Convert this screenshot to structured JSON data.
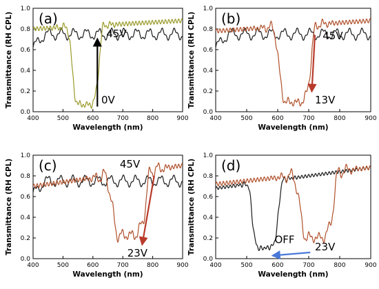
{
  "colors": {
    "black": "#1a1a1a",
    "olive": "#9a9a2a",
    "brown": "#b0502a",
    "arrow_black": "#000000",
    "arrow_red": "#b83a2a",
    "arrow_blue": "#4a78d8"
  },
  "chart_data": [
    {
      "type": "line",
      "panel": "(a)",
      "xlabel": "Wavelength (nm)",
      "ylabel": "Transmittance (RH CPL)",
      "xlim": [
        400,
        900
      ],
      "ylim": [
        0,
        1.0
      ],
      "xticks": [
        "400",
        "500",
        "600",
        "700",
        "800",
        "900"
      ],
      "yticks": [
        "0.0",
        "0.2",
        "0.4",
        "0.6",
        "0.8",
        "1.0"
      ],
      "annotations": [
        {
          "text": "45V",
          "x": 645,
          "y": 0.72
        },
        {
          "text": "0V",
          "x": 628,
          "y": 0.08
        }
      ],
      "arrow": {
        "from": [
          615,
          0.05
        ],
        "to": [
          615,
          0.7
        ],
        "color": "arrow_black"
      },
      "series": [
        {
          "color": "black",
          "kind": "osc",
          "base": 0.75,
          "amp": 0.045,
          "period": 42,
          "phase": 0,
          "start": 0.62,
          "rise": 40
        },
        {
          "color": "olive",
          "kind": "notch",
          "base": 0.8,
          "end": 0.88,
          "center": 575,
          "width": 48,
          "depth": 0.76,
          "ripple": 0.035,
          "rperiod": 26,
          "fine": 0.02
        }
      ]
    },
    {
      "type": "line",
      "panel": "(b)",
      "xlabel": "Wavelength (nm)",
      "ylabel": "Transmittance (RH CPL)",
      "xlim": [
        400,
        900
      ],
      "ylim": [
        0,
        1.0
      ],
      "xticks": [
        "400",
        "500",
        "600",
        "700",
        "800",
        "900"
      ],
      "yticks": [
        "0.0",
        "0.2",
        "0.4",
        "0.6",
        "0.8",
        "1.0"
      ],
      "annotations": [
        {
          "text": "45V",
          "x": 745,
          "y": 0.7
        },
        {
          "text": "13V",
          "x": 720,
          "y": 0.08
        }
      ],
      "arrow": {
        "from": [
          720,
          0.74
        ],
        "to": [
          710,
          0.2
        ],
        "color": "arrow_red"
      },
      "series": [
        {
          "color": "black",
          "kind": "osc",
          "base": 0.75,
          "amp": 0.045,
          "period": 42,
          "phase": 0,
          "start": 0.62,
          "rise": 40
        },
        {
          "color": "brown",
          "kind": "notch",
          "base": 0.78,
          "end": 0.88,
          "center": 655,
          "width": 55,
          "depth": 0.74,
          "ripple": 0.05,
          "rperiod": 28,
          "fine": 0.02
        }
      ]
    },
    {
      "type": "line",
      "panel": "(c)",
      "xlabel": "Wavelength (nm)",
      "ylabel": "Transmittance (RH CPL)",
      "xlim": [
        400,
        900
      ],
      "ylim": [
        0,
        1.0
      ],
      "xticks": [
        "400",
        "500",
        "600",
        "700",
        "800",
        "900"
      ],
      "yticks": [
        "0.0",
        "0.2",
        "0.4",
        "0.6",
        "0.8",
        "1.0"
      ],
      "annotations": [
        {
          "text": "45V",
          "x": 690,
          "y": 0.88
        },
        {
          "text": "23V",
          "x": 715,
          "y": 0.02
        }
      ],
      "arrow": {
        "from": [
          805,
          0.8
        ],
        "to": [
          765,
          0.14
        ],
        "color": "arrow_red"
      },
      "series": [
        {
          "color": "black",
          "kind": "osc",
          "base": 0.75,
          "amp": 0.045,
          "period": 42,
          "phase": 0.5,
          "start": 0.62,
          "rise": 40
        },
        {
          "color": "brown",
          "kind": "notch",
          "base": 0.7,
          "end": 0.9,
          "center": 720,
          "width": 60,
          "depth": 0.6,
          "ripple": 0.08,
          "rperiod": 30,
          "fine": 0.02
        }
      ]
    },
    {
      "type": "line",
      "panel": "(d)",
      "xlabel": "Wavelength (nm)",
      "ylabel": "Transmittance (RH CPL)",
      "xlim": [
        400,
        900
      ],
      "ylim": [
        0,
        1.0
      ],
      "xticks": [
        "400",
        "500",
        "600",
        "700",
        "800",
        "900"
      ],
      "yticks": [
        "0.0",
        "0.2",
        "0.4",
        "0.6",
        "0.8",
        "1.0"
      ],
      "annotations": [
        {
          "text": "OFF",
          "x": 590,
          "y": 0.15
        },
        {
          "text": "23V",
          "x": 720,
          "y": 0.08
        }
      ],
      "arrow": {
        "from": [
          705,
          0.06
        ],
        "to": [
          585,
          0.03
        ],
        "color": "arrow_blue"
      },
      "series": [
        {
          "color": "black",
          "kind": "notch",
          "base": 0.68,
          "end": 0.88,
          "center": 560,
          "width": 45,
          "depth": 0.64,
          "ripple": 0.02,
          "rperiod": 18,
          "fine": 0.015
        },
        {
          "color": "brown",
          "kind": "notch",
          "base": 0.72,
          "end": 0.88,
          "center": 725,
          "width": 58,
          "depth": 0.62,
          "ripple": 0.07,
          "rperiod": 30,
          "fine": 0.02
        }
      ]
    }
  ]
}
